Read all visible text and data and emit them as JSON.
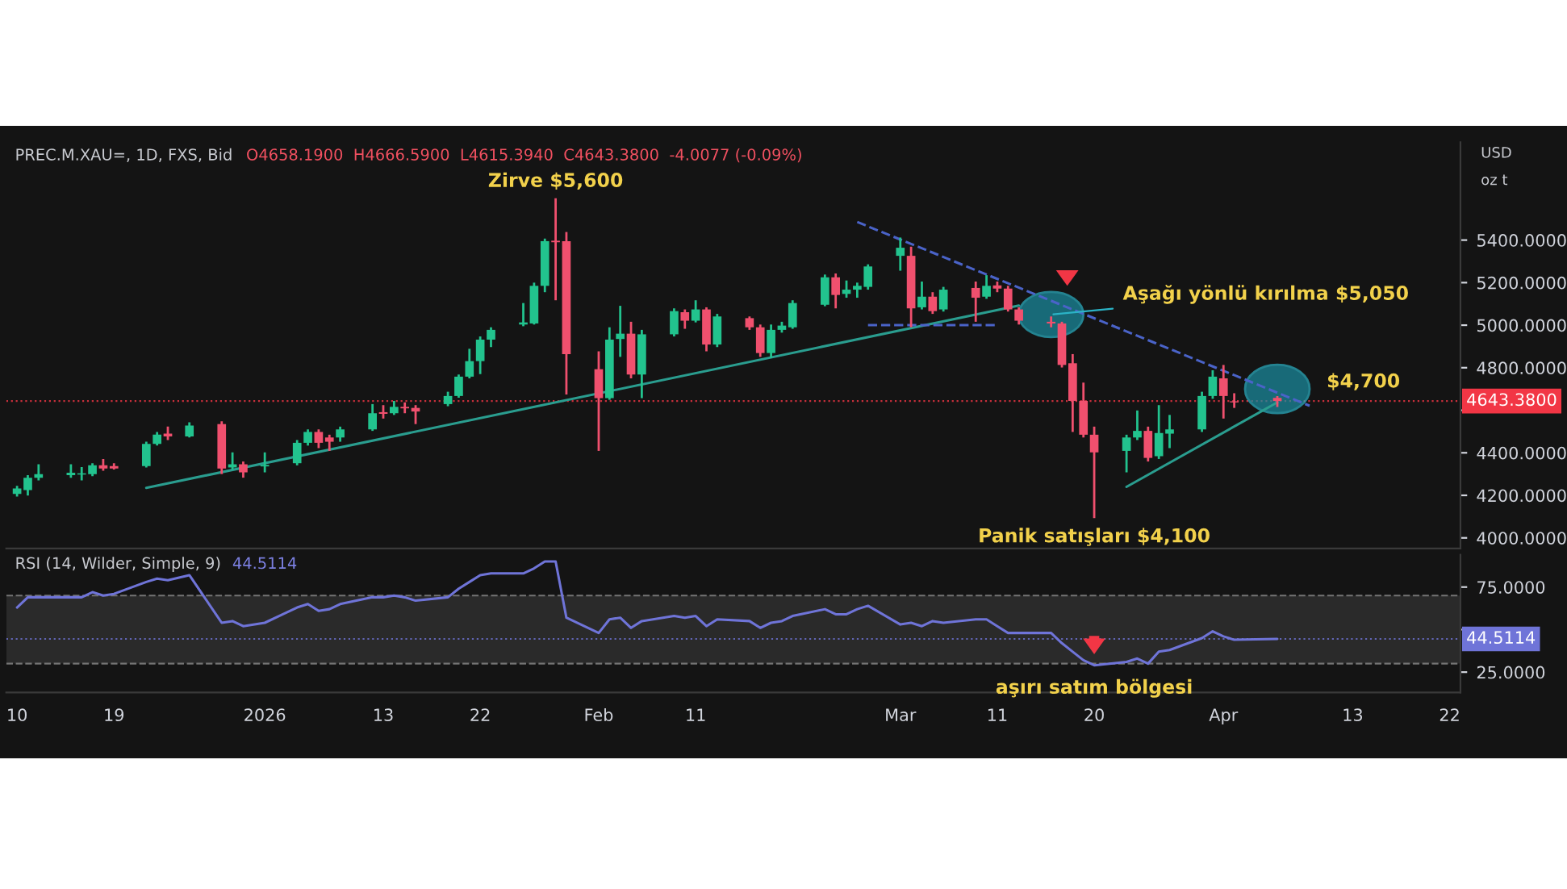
{
  "chart_data": [
    {
      "type": "candlestick",
      "title": "PREC.M.XAU=, 1D, FXS, Bid",
      "subtitle": "O4658.1900  H4666.5900  L4615.3940  C4643.3800  -4.0077 (-0.09%)",
      "x": [
        "2025-12-10",
        "2025-12-11",
        "2025-12-12",
        "2025-12-15",
        "2025-12-16",
        "2025-12-17",
        "2025-12-18",
        "2025-12-19",
        "2025-12-22",
        "2025-12-23",
        "2025-12-24",
        "2025-12-26",
        "2025-12-29",
        "2025-12-30",
        "2025-12-31",
        "2026-01-02",
        "2026-01-05",
        "2026-01-06",
        "2026-01-07",
        "2026-01-08",
        "2026-01-09",
        "2026-01-12",
        "2026-01-13",
        "2026-01-14",
        "2026-01-15",
        "2026-01-16",
        "2026-01-19",
        "2026-01-20",
        "2026-01-21",
        "2026-01-22",
        "2026-01-23",
        "2026-01-26",
        "2026-01-27",
        "2026-01-28",
        "2026-01-29",
        "2026-01-30",
        "2026-02-02",
        "2026-02-03",
        "2026-02-04",
        "2026-02-05",
        "2026-02-06",
        "2026-02-09",
        "2026-02-10",
        "2026-02-11",
        "2026-02-12",
        "2026-02-13",
        "2026-02-16",
        "2026-02-17",
        "2026-02-18",
        "2026-02-19",
        "2026-02-20",
        "2026-02-23",
        "2026-02-24",
        "2026-02-25",
        "2026-02-26",
        "2026-02-27",
        "2026-03-02",
        "2026-03-03",
        "2026-03-04",
        "2026-03-05",
        "2026-03-06",
        "2026-03-09",
        "2026-03-10",
        "2026-03-11",
        "2026-03-12",
        "2026-03-13",
        "2026-03-16",
        "2026-03-17",
        "2026-03-18",
        "2026-03-19",
        "2026-03-20",
        "2026-03-23",
        "2026-03-24",
        "2026-03-25",
        "2026-03-26",
        "2026-03-27",
        "2026-03-30",
        "2026-03-31",
        "2026-04-01",
        "2026-04-02",
        "2026-04-06"
      ],
      "ohlc": [
        [
          4207,
          4245,
          4194,
          4232
        ],
        [
          4225,
          4295,
          4199,
          4283
        ],
        [
          4283,
          4346,
          4270,
          4300
        ],
        [
          4295,
          4346,
          4283,
          4306
        ],
        [
          4298,
          4333,
          4270,
          4303
        ],
        [
          4300,
          4351,
          4290,
          4341
        ],
        [
          4341,
          4371,
          4316,
          4326
        ],
        [
          4338,
          4351,
          4321,
          4326
        ],
        [
          4338,
          4452,
          4331,
          4442
        ],
        [
          4442,
          4498,
          4434,
          4485
        ],
        [
          4490,
          4523,
          4460,
          4477
        ],
        [
          4477,
          4543,
          4472,
          4528
        ],
        [
          4535,
          4548,
          4300,
          4326
        ],
        [
          4331,
          4402,
          4321,
          4346
        ],
        [
          4346,
          4359,
          4283,
          4308
        ],
        [
          4336,
          4402,
          4308,
          4343
        ],
        [
          4351,
          4460,
          4341,
          4447
        ],
        [
          4447,
          4510,
          4434,
          4498
        ],
        [
          4498,
          4510,
          4422,
          4447
        ],
        [
          4472,
          4485,
          4409,
          4452
        ],
        [
          4472,
          4523,
          4452,
          4510
        ],
        [
          4510,
          4629,
          4503,
          4586
        ],
        [
          4591,
          4624,
          4561,
          4583
        ],
        [
          4586,
          4644,
          4578,
          4616
        ],
        [
          4616,
          4637,
          4586,
          4609
        ],
        [
          4611,
          4624,
          4535,
          4594
        ],
        [
          4629,
          4687,
          4619,
          4667
        ],
        [
          4667,
          4768,
          4659,
          4758
        ],
        [
          4758,
          4889,
          4750,
          4831
        ],
        [
          4831,
          4947,
          4770,
          4932
        ],
        [
          4932,
          4990,
          4897,
          4978
        ],
        [
          5003,
          5104,
          4995,
          5013
        ],
        [
          5008,
          5200,
          5003,
          5185
        ],
        [
          5185,
          5407,
          5155,
          5395
        ],
        [
          5397,
          5597,
          5117,
          5390
        ],
        [
          5395,
          5438,
          4674,
          4864
        ],
        [
          4793,
          4877,
          4409,
          4657
        ],
        [
          4657,
          4990,
          4649,
          4932
        ],
        [
          4935,
          5091,
          4851,
          4960
        ],
        [
          4960,
          5016,
          4750,
          4768
        ],
        [
          4768,
          4978,
          4657,
          4957
        ],
        [
          4957,
          5079,
          4947,
          5066
        ],
        [
          5061,
          5074,
          4983,
          5021
        ],
        [
          5021,
          5117,
          5013,
          5074
        ],
        [
          5074,
          5084,
          4877,
          4909
        ],
        [
          4909,
          5053,
          4897,
          5041
        ],
        [
          5033,
          5041,
          4978,
          4990
        ],
        [
          4990,
          5003,
          4851,
          4869
        ],
        [
          4869,
          5003,
          4846,
          4978
        ],
        [
          4978,
          5016,
          4965,
          4998
        ],
        [
          4990,
          5117,
          4983,
          5104
        ],
        [
          5096,
          5238,
          5089,
          5225
        ],
        [
          5225,
          5243,
          5079,
          5142
        ],
        [
          5147,
          5210,
          5129,
          5167
        ],
        [
          5167,
          5200,
          5129,
          5185
        ],
        [
          5180,
          5286,
          5167,
          5276
        ],
        [
          5326,
          5412,
          5256,
          5364
        ],
        [
          5326,
          5369,
          4990,
          5079
        ],
        [
          5084,
          5205,
          5074,
          5134
        ],
        [
          5134,
          5155,
          5053,
          5066
        ],
        [
          5074,
          5180,
          5064,
          5167
        ],
        [
          5175,
          5205,
          5016,
          5129
        ],
        [
          5134,
          5235,
          5124,
          5185
        ],
        [
          5187,
          5205,
          5155,
          5172
        ],
        [
          5172,
          5185,
          5064,
          5074
        ],
        [
          5074,
          5084,
          5003,
          5021
        ],
        [
          5016,
          5041,
          4990,
          5008
        ],
        [
          5008,
          5016,
          4801,
          4813
        ],
        [
          4821,
          4864,
          4498,
          4644
        ],
        [
          4644,
          4730,
          4472,
          4485
        ],
        [
          4485,
          4523,
          4093,
          4402
        ],
        [
          4409,
          4485,
          4308,
          4472
        ],
        [
          4472,
          4599,
          4460,
          4503
        ],
        [
          4503,
          4523,
          4359,
          4376
        ],
        [
          4384,
          4624,
          4371,
          4493
        ],
        [
          4490,
          4578,
          4422,
          4510
        ],
        [
          4510,
          4687,
          4498,
          4667
        ],
        [
          4667,
          4788,
          4654,
          4758
        ],
        [
          4750,
          4813,
          4561,
          4667
        ],
        [
          4642,
          4680,
          4611,
          4637
        ],
        [
          4658.19,
          4666.59,
          4615.394,
          4643.38
        ]
      ],
      "colors": [
        "#22c38e",
        "#22c38e",
        "#22c38e",
        "#22c38e",
        "#22c38e",
        "#22c38e",
        "#f0506e",
        "#f0506e",
        "#22c38e",
        "#22c38e",
        "#f0506e",
        "#22c38e",
        "#f0506e",
        "#22c38e",
        "#f0506e",
        "#22c38e",
        "#22c38e",
        "#22c38e",
        "#f0506e",
        "#f0506e",
        "#22c38e",
        "#22c38e",
        "#f0506e",
        "#22c38e",
        "#f0506e",
        "#f0506e",
        "#22c38e",
        "#22c38e",
        "#22c38e",
        "#22c38e",
        "#22c38e",
        "#22c38e",
        "#22c38e",
        "#22c38e",
        "#f0506e",
        "#f0506e",
        "#f0506e",
        "#22c38e",
        "#22c38e",
        "#f0506e",
        "#22c38e",
        "#22c38e",
        "#f0506e",
        "#22c38e",
        "#f0506e",
        "#22c38e",
        "#f0506e",
        "#f0506e",
        "#22c38e",
        "#22c38e",
        "#22c38e",
        "#22c38e",
        "#f0506e",
        "#22c38e",
        "#22c38e",
        "#22c38e",
        "#22c38e",
        "#f0506e",
        "#22c38e",
        "#f0506e",
        "#22c38e",
        "#f0506e",
        "#22c38e",
        "#f0506e",
        "#f0506e",
        "#f0506e",
        "#f0506e",
        "#f0506e",
        "#f0506e",
        "#f0506e",
        "#f0506e",
        "#22c38e",
        "#22c38e",
        "#f0506e",
        "#22c38e",
        "#22c38e",
        "#22c38e",
        "#22c38e",
        "#f0506e",
        "#f0506e",
        "#f0506e"
      ],
      "series": [
        {
          "type": "line",
          "color": "#2a9d8f",
          "line_style": "solid",
          "x": [
            "2025-12-22",
            "2026-03-13"
          ],
          "values": [
            4235,
            5092
          ]
        },
        {
          "type": "line",
          "color": "#2a9d8f",
          "line_style": "solid",
          "x": [
            "2026-03-23",
            "2026-04-06"
          ],
          "values": [
            4240,
            4637
          ]
        },
        {
          "type": "line",
          "color": "#4a63c8",
          "line_style": "dashed",
          "x": [
            "2026-02-26",
            "2026-04-09"
          ],
          "values": [
            5485,
            4621
          ]
        },
        {
          "type": "line",
          "color": "#4a63c8",
          "line_style": "dashed",
          "x": [
            "2026-02-27",
            "2026-03-11"
          ],
          "values": [
            5000,
            5000
          ]
        }
      ],
      "xlim": [
        "2025-12-09",
        "2026-04-23"
      ],
      "ylim": [
        3950,
        5860
      ],
      "yticks": [
        {
          "value": 4000,
          "label": "4000.0000"
        },
        {
          "value": 4200,
          "label": "4200.0000"
        },
        {
          "value": 4400,
          "label": "4400.0000"
        },
        {
          "value": 4600,
          "label": null
        },
        {
          "value": 4800,
          "label": "4800.0000"
        },
        {
          "value": 5000,
          "label": "5000.0000"
        },
        {
          "value": 5200,
          "label": "5200.0000"
        },
        {
          "value": 5400,
          "label": "5400.0000"
        }
      ],
      "tick_labels": "y",
      "ref_lines": [
        {
          "axis": "y",
          "value": 4643.38,
          "label": "4643.3800",
          "color": "#f23645",
          "line_style": "dotted"
        }
      ],
      "annotations": [
        {
          "text": "Zirve $5,600",
          "x": "2026-01-29",
          "y": 5600
        },
        {
          "text": "Aşağı yönlü kırılma $5,050",
          "x": "2026-03-16",
          "y": 5050
        },
        {
          "text": "$4,700",
          "x": "2026-04-06",
          "y": 4700
        },
        {
          "text": "Panik satışları $4,100",
          "x": "2026-03-20",
          "y": 4100
        },
        "USD",
        "oz t"
      ]
    },
    {
      "type": "line",
      "title": "RSI (14, Wilder, Simple, 9)",
      "x": [
        "2025-12-10",
        "2025-12-11",
        "2025-12-12",
        "2025-12-15",
        "2025-12-16",
        "2025-12-17",
        "2025-12-18",
        "2025-12-19",
        "2025-12-22",
        "2025-12-23",
        "2025-12-24",
        "2025-12-26",
        "2025-12-29",
        "2025-12-30",
        "2025-12-31",
        "2026-01-02",
        "2026-01-05",
        "2026-01-06",
        "2026-01-07",
        "2026-01-08",
        "2026-01-09",
        "2026-01-12",
        "2026-01-13",
        "2026-01-14",
        "2026-01-15",
        "2026-01-16",
        "2026-01-19",
        "2026-01-20",
        "2026-01-21",
        "2026-01-22",
        "2026-01-23",
        "2026-01-26",
        "2026-01-27",
        "2026-01-28",
        "2026-01-29",
        "2026-01-30",
        "2026-02-02",
        "2026-02-03",
        "2026-02-04",
        "2026-02-05",
        "2026-02-06",
        "2026-02-09",
        "2026-02-10",
        "2026-02-11",
        "2026-02-12",
        "2026-02-13",
        "2026-02-16",
        "2026-02-17",
        "2026-02-18",
        "2026-02-19",
        "2026-02-20",
        "2026-02-23",
        "2026-02-24",
        "2026-02-25",
        "2026-02-26",
        "2026-02-27",
        "2026-03-02",
        "2026-03-03",
        "2026-03-04",
        "2026-03-05",
        "2026-03-06",
        "2026-03-09",
        "2026-03-10",
        "2026-03-11",
        "2026-03-12",
        "2026-03-13",
        "2026-03-16",
        "2026-03-17",
        "2026-03-18",
        "2026-03-19",
        "2026-03-20",
        "2026-03-23",
        "2026-03-24",
        "2026-03-25",
        "2026-03-26",
        "2026-03-27",
        "2026-03-30",
        "2026-03-31",
        "2026-04-01",
        "2026-04-02",
        "2026-04-06"
      ],
      "series": [
        {
          "color": "#6f74d8",
          "values": [
            63,
            69,
            69,
            69,
            69,
            72,
            70,
            71,
            78,
            80,
            79,
            82,
            54,
            55,
            52,
            54,
            63,
            65,
            61,
            62,
            65,
            69,
            69,
            70,
            69,
            67,
            69,
            74,
            78,
            82,
            83,
            83,
            86,
            90,
            90,
            57,
            48,
            56,
            57,
            51,
            55,
            58,
            57,
            58,
            52,
            56,
            55,
            51,
            54,
            55,
            58,
            62,
            59,
            59,
            62,
            64,
            53,
            54,
            52,
            55,
            54,
            56,
            56,
            52,
            48,
            48,
            48,
            42,
            37,
            32,
            29,
            31,
            33,
            30,
            37,
            38,
            45,
            49,
            46,
            44,
            44.5114
          ]
        }
      ],
      "xlim": [
        "2025-12-09",
        "2026-04-23"
      ],
      "ylim": [
        13,
        94
      ],
      "xticks": [
        {
          "value": "2025-12-10",
          "label": "10"
        },
        {
          "value": "2025-12-19",
          "label": "19"
        },
        {
          "value": "2026-01-02",
          "label": "2026"
        },
        {
          "value": "2026-01-13",
          "label": "13"
        },
        {
          "value": "2026-01-22",
          "label": "22"
        },
        {
          "value": "2026-02-02",
          "label": "Feb"
        },
        {
          "value": "2026-02-11",
          "label": "11"
        },
        {
          "value": "2026-03-02",
          "label": "Mar"
        },
        {
          "value": "2026-03-11",
          "label": "11"
        },
        {
          "value": "2026-03-20",
          "label": "20"
        },
        {
          "value": "2026-04-01",
          "label": "Apr"
        },
        {
          "value": "2026-04-13",
          "label": "13"
        },
        {
          "value": "2026-04-22",
          "label": "22"
        }
      ],
      "yticks": [
        {
          "value": 25,
          "label": "25.0000"
        },
        {
          "value": 50,
          "label": null
        },
        {
          "value": 75,
          "label": "75.0000"
        }
      ],
      "bands": [
        {
          "axis": "y",
          "from": 30,
          "to": 70,
          "color": "#2a2a2a"
        }
      ],
      "ref_lines": [
        {
          "axis": "y",
          "value": 70,
          "color": "#8a8a8a",
          "line_style": "dashed"
        },
        {
          "axis": "y",
          "value": 30,
          "color": "#8a8a8a",
          "line_style": "dashed"
        },
        {
          "axis": "y",
          "value": 44.5114,
          "label": "44.5114",
          "color": "#6f74d8",
          "line_style": "dotted"
        }
      ],
      "annotations": [
        {
          "text": "aşırı satım bölgesi",
          "x": "2026-03-20",
          "y": 30
        },
        "44.5114"
      ]
    }
  ]
}
